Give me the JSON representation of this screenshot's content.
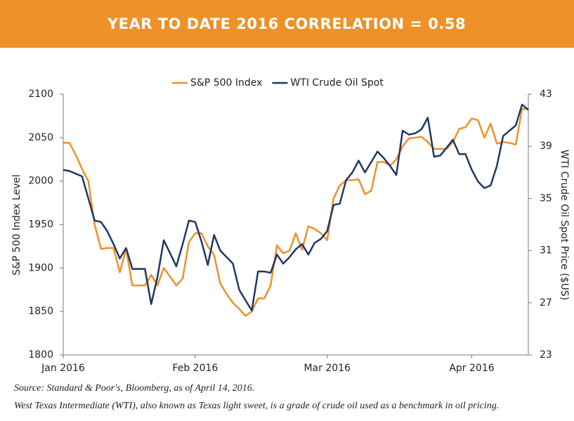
{
  "chart_data": {
    "type": "line",
    "title": "YEAR TO DATE 2016 CORRELATION = 0.58",
    "ylabel": "S&P 500 Index Level",
    "y2label": "WTI Crude Oil Spot Price ($US)",
    "source": "Source: Standard & Poor's, Bloomberg, as of April 14, 2016.",
    "note": "West Texas Intermediate (WTI), also known as Texas light sweet, is a grade of crude oil used as a benchmark in oil pricing.",
    "legend": "top",
    "grid": false,
    "categories": [
      "Jan 2016",
      null,
      null,
      null,
      null,
      null,
      null,
      null,
      null,
      null,
      null,
      null,
      null,
      null,
      null,
      null,
      null,
      null,
      null,
      null,
      null,
      "Feb 2016",
      null,
      null,
      null,
      null,
      null,
      null,
      null,
      null,
      null,
      null,
      null,
      null,
      null,
      null,
      null,
      null,
      null,
      null,
      null,
      null,
      "Mar 2016",
      null,
      null,
      null,
      null,
      null,
      null,
      null,
      null,
      null,
      null,
      null,
      null,
      null,
      null,
      null,
      null,
      null,
      null,
      null,
      null,
      null,
      null,
      "Apr 2016",
      null,
      null,
      null,
      null,
      null,
      null,
      null,
      null,
      null
    ],
    "ylim": [
      1800,
      2100
    ],
    "yticks": [
      1800,
      1850,
      1900,
      1950,
      2000,
      2050,
      2100
    ],
    "y2lim": [
      23,
      43
    ],
    "y2ticks": [
      23,
      27,
      31,
      35,
      39,
      43
    ],
    "series": [
      {
        "name": "S&P 500 Index",
        "color": "#ee9128",
        "values": [
          2044,
          2044,
          2030,
          2014,
          2000,
          1950,
          1922,
          1923,
          1923,
          1895,
          1922,
          1880,
          1880,
          1880,
          1892,
          1880,
          1900,
          1890,
          1880,
          1888,
          1930,
          1940,
          1940,
          1925,
          1915,
          1882,
          1870,
          1860,
          1853,
          1845,
          1850,
          1865,
          1865,
          1880,
          1926,
          1917,
          1920,
          1940,
          1921,
          1948,
          1945,
          1940,
          1932,
          1980,
          1995,
          2001,
          2001,
          2002,
          1985,
          1989,
          2022,
          2022,
          2018,
          2025,
          2040,
          2049,
          2050,
          2051,
          2045,
          2037,
          2037,
          2037,
          2045,
          2060,
          2062,
          2072,
          2070,
          2050,
          2066,
          2043,
          2045,
          2044,
          2042,
          2083,
          2083
        ]
      },
      {
        "name": "WTI Crude Oil Spot",
        "color": "#1f3864",
        "axis": "y2",
        "values": [
          37.2,
          37.1,
          36.9,
          36.7,
          35,
          33.3,
          33.2,
          32.5,
          31.5,
          30.4,
          31.2,
          29.6,
          29.6,
          29.6,
          26.9,
          29,
          31.8,
          30.8,
          29.8,
          31.5,
          33.3,
          33.2,
          31.7,
          29.9,
          32.2,
          31,
          30.5,
          30,
          28,
          27.2,
          26.4,
          29.4,
          29.4,
          29.3,
          30.7,
          30,
          30.5,
          31.1,
          31.5,
          30.7,
          31.6,
          31.9,
          32.5,
          34.5,
          34.6,
          36.4,
          37,
          37.9,
          37,
          37.8,
          38.6,
          38.1,
          37.5,
          36.8,
          40.2,
          39.9,
          40,
          40.3,
          41.2,
          38.2,
          38.3,
          38.9,
          39.5,
          38.4,
          38.4,
          37.2,
          36.3,
          35.8,
          36,
          37.5,
          39.8,
          40.2,
          40.6,
          42.2,
          41.8
        ]
      }
    ]
  }
}
